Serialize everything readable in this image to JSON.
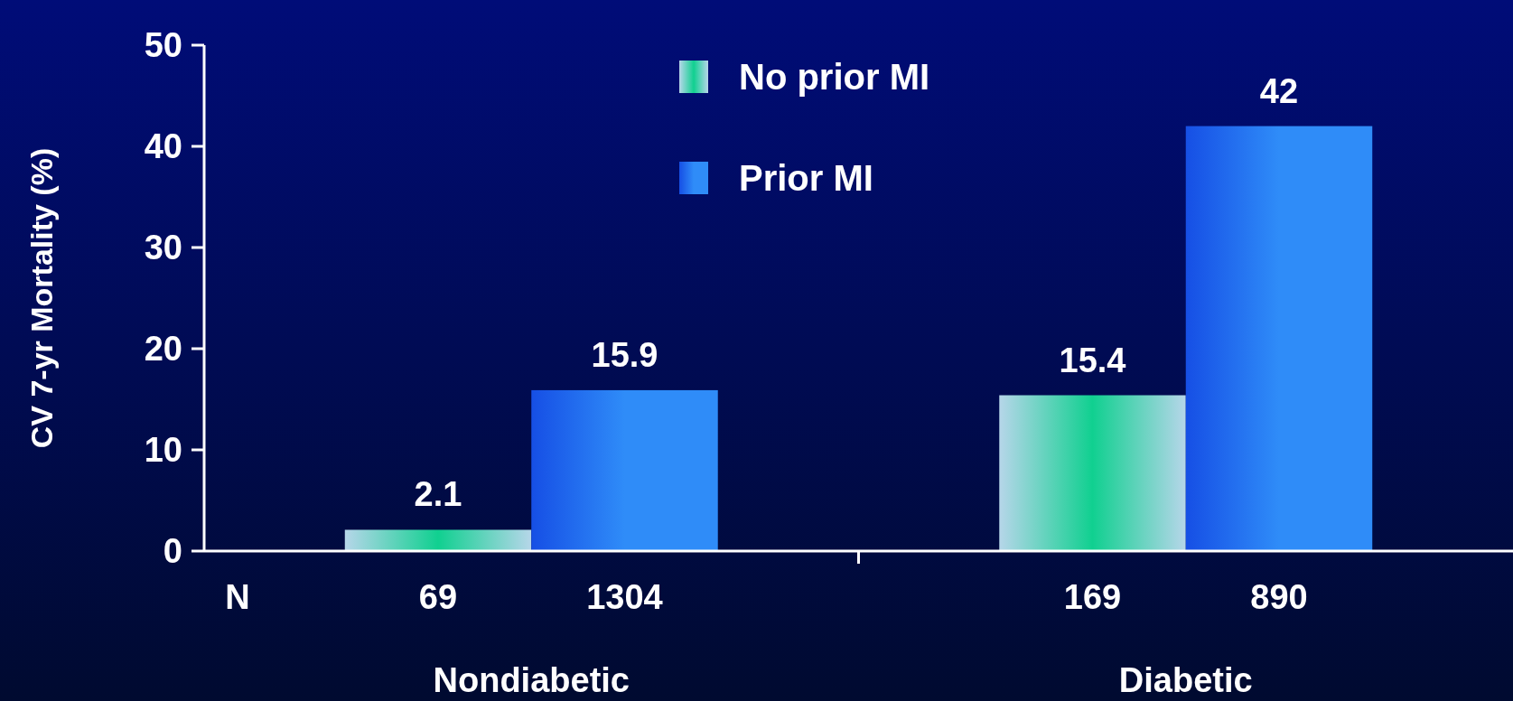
{
  "chart_data": {
    "type": "bar",
    "ylabel": "CV 7-yr Mortality (%)",
    "categories": [
      "Nondiabetic",
      "Diabetic"
    ],
    "series": [
      {
        "name": "No prior MI",
        "color": "#10d090",
        "values": [
          2.1,
          15.4
        ]
      },
      {
        "name": "Prior MI",
        "color": "#2f8cf8",
        "values": [
          15.9,
          42
        ]
      }
    ],
    "ylim": [
      0,
      50
    ],
    "yticks": [
      0,
      10,
      20,
      30,
      40,
      50
    ],
    "data_labels": true,
    "legend": "top",
    "grid": false,
    "annotations": [
      "N",
      "69",
      "1304",
      "169",
      "890"
    ]
  }
}
